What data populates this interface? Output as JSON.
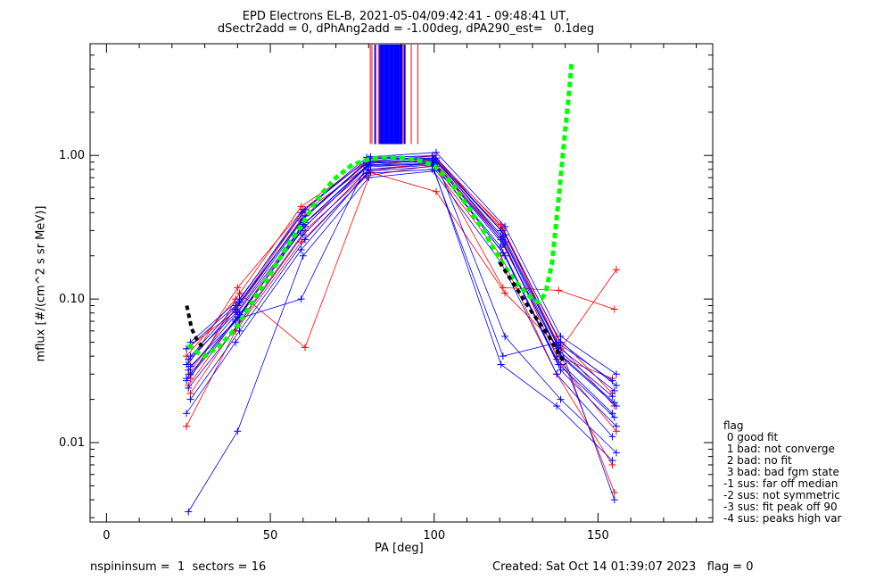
{
  "title_line1": "EPD Electrons EL-B, 2021-05-04/09:42:41 - 09:48:41 UT,",
  "title_line2": "dSectr2add = 0, dPhAng2add = -1.00deg, dPA290_est=   0.1deg",
  "footer_left": "nspininsum =  1  sectors = 16",
  "footer_right": "Created: Sat Oct 14 01:39:07 2023   flag = 0",
  "legend": {
    "title": "flag",
    "items": [
      " 0 good fit",
      " 1 bad: not converge",
      " 2 bad: no fit",
      " 3 bad: bad fgm state",
      "-1 sus: far off median",
      "-2 sus: not symmetric",
      "-3 sus: fit peak off 90",
      "-4 sus: peaks high var"
    ]
  },
  "colors": {
    "red": "#ff0000",
    "blue": "#0000ff",
    "green": "#00ff00",
    "black": "#000000"
  },
  "chart_data": {
    "type": "line",
    "xlabel": "PA [deg]",
    "ylabel": "mflux [#/(cm^2 s sr MeV)]",
    "xlim": [
      -5,
      185
    ],
    "ylim": [
      0.0028,
      6.0
    ],
    "yscale": "log",
    "x_ticks": [
      0,
      50,
      100,
      150
    ],
    "x_tick_labels": [
      "0",
      "50",
      "100",
      "150"
    ],
    "y_ticks": [
      0.01,
      0.1,
      1.0
    ],
    "y_tick_labels": [
      "0.01",
      "0.10",
      "1.00"
    ],
    "pa_bins": [
      25,
      40,
      60,
      80,
      100,
      121,
      138,
      155
    ],
    "series": [
      {
        "color": "red",
        "values": [
          0.04,
          0.1,
          0.44,
          0.9,
          0.99,
          0.33,
          0.055,
          0.022
        ]
      },
      {
        "color": "red",
        "values": [
          0.03,
          0.09,
          0.4,
          0.85,
          0.95,
          0.3,
          0.048,
          0.018
        ]
      },
      {
        "color": "red",
        "values": [
          0.022,
          0.07,
          0.3,
          0.78,
          0.9,
          0.24,
          0.035,
          0.012
        ]
      },
      {
        "color": "red",
        "values": [
          0.013,
          0.06,
          0.25,
          0.72,
          0.85,
          0.2,
          0.03,
          0.007
        ]
      },
      {
        "color": "red",
        "values": [
          0.035,
          0.12,
          0.42,
          0.95,
          1.0,
          0.31,
          0.045,
          0.0045
        ]
      },
      {
        "color": "red",
        "values": [
          0.028,
          0.11,
          0.046,
          0.76,
          0.56,
          0.11,
          0.045,
          0.16
        ]
      },
      {
        "color": "red",
        "values": [
          0.045,
          0.082,
          0.36,
          0.88,
          0.93,
          0.27,
          0.04,
          0.028
        ]
      },
      {
        "color": "red",
        "values": [
          0.025,
          0.075,
          0.33,
          0.8,
          0.88,
          0.12,
          0.115,
          0.085
        ]
      },
      {
        "color": "blue",
        "values": [
          0.04,
          0.095,
          0.38,
          0.95,
          0.96,
          0.28,
          0.05,
          0.025
        ]
      },
      {
        "color": "blue",
        "values": [
          0.035,
          0.085,
          0.35,
          0.9,
          0.92,
          0.26,
          0.045,
          0.021
        ]
      },
      {
        "color": "blue",
        "values": [
          0.032,
          0.08,
          0.33,
          0.86,
          0.89,
          0.24,
          0.042,
          0.019
        ]
      },
      {
        "color": "blue",
        "values": [
          0.03,
          0.078,
          0.32,
          0.88,
          0.93,
          0.25,
          0.04,
          0.018
        ]
      },
      {
        "color": "blue",
        "values": [
          0.027,
          0.07,
          0.3,
          0.83,
          0.88,
          0.23,
          0.038,
          0.016
        ]
      },
      {
        "color": "blue",
        "values": [
          0.024,
          0.065,
          0.28,
          0.8,
          0.86,
          0.21,
          0.035,
          0.015
        ]
      },
      {
        "color": "blue",
        "values": [
          0.02,
          0.06,
          0.26,
          0.78,
          0.84,
          0.2,
          0.032,
          0.013
        ]
      },
      {
        "color": "blue",
        "values": [
          0.016,
          0.05,
          0.22,
          0.75,
          0.8,
          0.18,
          0.03,
          0.011
        ]
      },
      {
        "color": "blue",
        "values": [
          0.0033,
          0.012,
          0.2,
          0.7,
          0.78,
          0.04,
          0.05,
          0.004
        ]
      },
      {
        "color": "blue",
        "values": [
          0.05,
          0.1,
          0.42,
          0.98,
          1.05,
          0.32,
          0.055,
          0.03
        ]
      },
      {
        "color": "blue",
        "values": [
          0.045,
          0.09,
          0.4,
          0.97,
          0.99,
          0.3,
          0.05,
          0.027
        ]
      },
      {
        "color": "blue",
        "values": [
          0.038,
          0.082,
          0.36,
          0.92,
          0.95,
          0.27,
          0.046,
          0.023
        ]
      },
      {
        "color": "blue",
        "values": [
          0.034,
          0.075,
          0.34,
          0.9,
          0.9,
          0.055,
          0.02,
          0.0085
        ]
      },
      {
        "color": "blue",
        "values": [
          0.028,
          0.072,
          0.1,
          0.85,
          0.87,
          0.035,
          0.018,
          0.0075
        ]
      }
    ],
    "fit_curve": {
      "color": "green",
      "points": [
        [
          25,
          0.048
        ],
        [
          28,
          0.042
        ],
        [
          30,
          0.04
        ],
        [
          35,
          0.048
        ],
        [
          40,
          0.065
        ],
        [
          45,
          0.1
        ],
        [
          50,
          0.15
        ],
        [
          55,
          0.23
        ],
        [
          60,
          0.34
        ],
        [
          65,
          0.52
        ],
        [
          70,
          0.7
        ],
        [
          75,
          0.86
        ],
        [
          80,
          0.94
        ],
        [
          85,
          0.97
        ],
        [
          90,
          0.96
        ],
        [
          95,
          0.93
        ],
        [
          100,
          0.85
        ],
        [
          105,
          0.65
        ],
        [
          110,
          0.45
        ],
        [
          115,
          0.3
        ],
        [
          120,
          0.19
        ],
        [
          125,
          0.13
        ],
        [
          130,
          0.1
        ],
        [
          132,
          0.095
        ],
        [
          134,
          0.11
        ],
        [
          136,
          0.18
        ],
        [
          138,
          0.5
        ],
        [
          140,
          1.5
        ],
        [
          141,
          2.5
        ],
        [
          142,
          4.5
        ]
      ]
    },
    "median_curve": {
      "color": "black",
      "points": [
        [
          24.5,
          0.09
        ],
        [
          26,
          0.062
        ],
        [
          28,
          0.05
        ],
        [
          30,
          0.045
        ],
        [
          120,
          0.18
        ],
        [
          125,
          0.12
        ],
        [
          130,
          0.08
        ],
        [
          135,
          0.055
        ],
        [
          140,
          0.035
        ]
      ]
    },
    "vertical_lines": {
      "y_from": 1.2,
      "red_x": [
        80.5,
        81.0,
        83.0,
        90.5,
        93.0,
        95.0
      ],
      "blue_x": [
        82.0,
        83.5,
        84.0,
        84.5,
        85.0,
        85.5,
        86.0,
        86.5,
        87.0,
        87.5,
        88.0,
        88.5,
        89.0,
        89.5,
        90.0,
        91.0
      ]
    }
  }
}
